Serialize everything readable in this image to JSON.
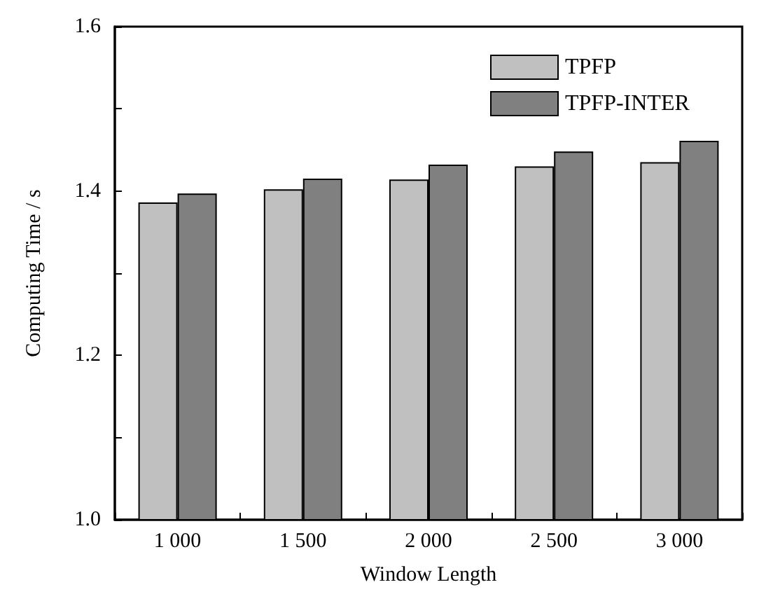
{
  "chart_data": {
    "type": "bar",
    "xlabel": "Window Length",
    "ylabel": "Computing Time / s",
    "categories": [
      "1 000",
      "1 500",
      "2 000",
      "2 500",
      "3 000"
    ],
    "series": [
      {
        "name": "TPFP",
        "color": "#c0c0c0",
        "values": [
          1.386,
          1.402,
          1.414,
          1.43,
          1.435
        ]
      },
      {
        "name": "TPFP-INTER",
        "color": "#808080",
        "values": [
          1.397,
          1.415,
          1.432,
          1.448,
          1.461
        ]
      }
    ],
    "ylim": [
      1.0,
      1.6
    ],
    "yticks": [
      {
        "value": 1.0,
        "label": "1.0"
      },
      {
        "value": 1.1,
        "label": null
      },
      1.2,
      {
        "value": 1.3,
        "label": null
      },
      1.4,
      {
        "value": 1.5,
        "label": null
      },
      1.6
    ],
    "grid": false,
    "legend": "top right"
  }
}
